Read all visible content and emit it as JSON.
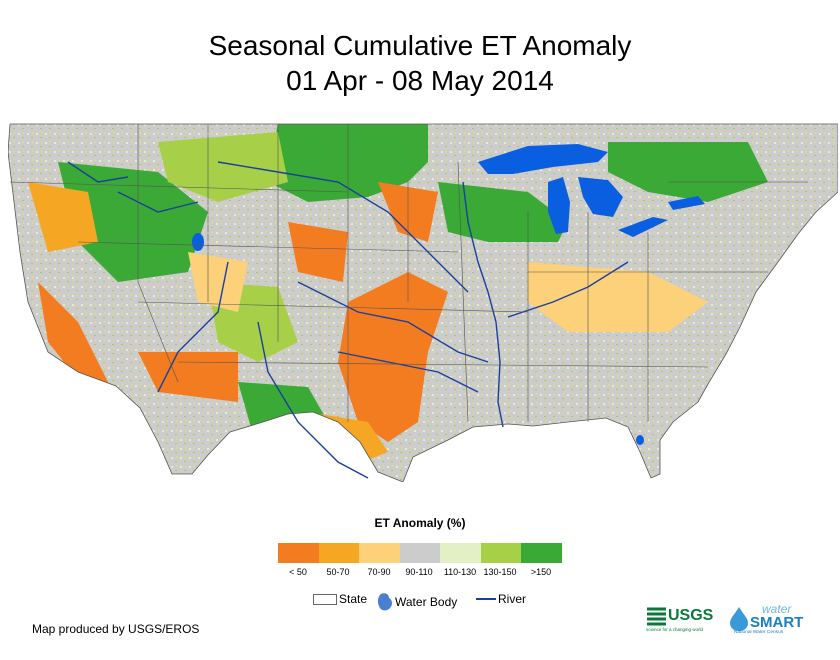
{
  "title": {
    "line1": "Seasonal Cumulative ET Anomaly",
    "line2": "01 Apr - 08 May 2014"
  },
  "legend": {
    "title": "ET Anomaly (%)",
    "classes": [
      {
        "label": "< 50",
        "color": "#f47c20"
      },
      {
        "label": "50-70",
        "color": "#f5a623"
      },
      {
        "label": "70-90",
        "color": "#fdd07a"
      },
      {
        "label": "90-110",
        "color": "#cccccc"
      },
      {
        "label": "110-130",
        "color": "#e3efc4"
      },
      {
        "label": "130-150",
        "color": "#a7cf48"
      },
      {
        "label": ">150",
        "color": "#3aa935"
      }
    ],
    "symbols": {
      "state": "State",
      "water_body": "Water Body",
      "river": "River"
    }
  },
  "credit": "Map produced by USGS/EROS",
  "logos": {
    "usgs": {
      "name": "USGS",
      "tagline": "science for a changing world"
    },
    "watersmart": {
      "name_top": "water",
      "name_bottom": "SMART",
      "tagline": "National Water Census"
    }
  },
  "colors": {
    "water": "#0a5fe0",
    "river": "#1a3fa0",
    "state_line": "#555555"
  }
}
